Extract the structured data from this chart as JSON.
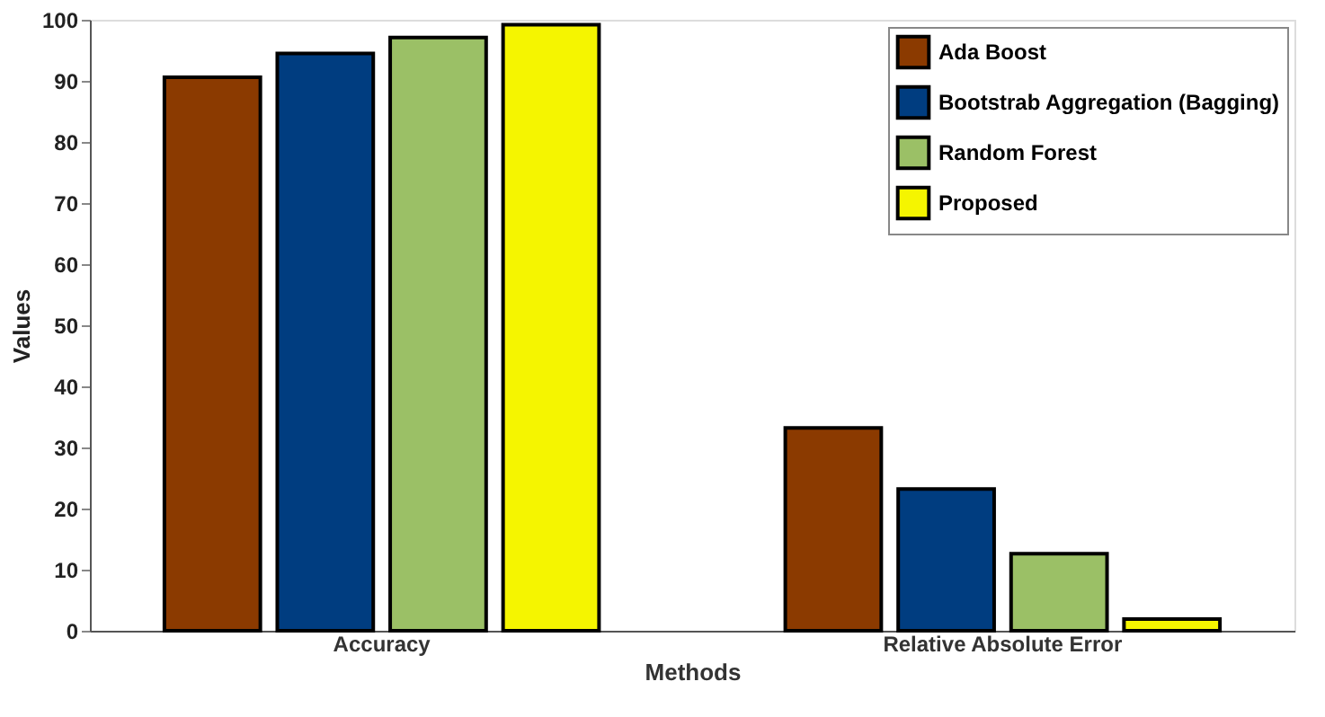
{
  "chart_data": {
    "type": "bar",
    "xlabel": "Methods",
    "ylabel": "Values",
    "categories": [
      "Accuracy",
      "Relative Absolute Error"
    ],
    "series": [
      {
        "name": "Ada Boost",
        "color": "#8b3a00",
        "values": [
          90.6,
          33.2
        ]
      },
      {
        "name": "Bootstrab Aggregation (Bagging)",
        "color": "#003d80",
        "values": [
          94.5,
          23.2
        ]
      },
      {
        "name": "Random Forest",
        "color": "#9bc066",
        "values": [
          97.1,
          12.6
        ]
      },
      {
        "name": "Proposed",
        "color": "#f5f500",
        "values": [
          99.2,
          1.9
        ]
      }
    ],
    "ylim": [
      0,
      100
    ],
    "yticks": [
      0,
      10,
      20,
      30,
      40,
      50,
      60,
      70,
      80,
      90,
      100
    ],
    "grid": false,
    "legend": "top right"
  }
}
